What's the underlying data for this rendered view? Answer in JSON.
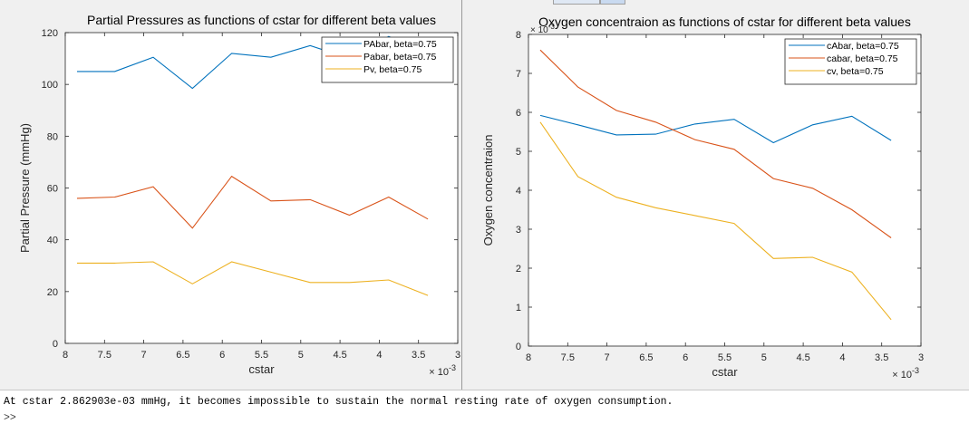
{
  "console": {
    "message": "At cstar 2.862903e-03 mmHg, it becomes impossible to sustain the normal resting rate of oxygen consumption.",
    "prompt": ">>"
  },
  "chart_data": [
    {
      "type": "line",
      "title": "Partial Pressures as functions of cstar for different beta values",
      "xlabel": "cstar",
      "ylabel": "Partial Pressure (mmHg)",
      "x_exponent_label": "× 10",
      "x_exponent": "-3",
      "x_reversed": true,
      "xlim": [
        3,
        8
      ],
      "ylim": [
        0,
        120
      ],
      "xticks": [
        8,
        7.5,
        7,
        6.5,
        6,
        5.5,
        5,
        4.5,
        4,
        3.5,
        3
      ],
      "xtick_labels": [
        "8",
        "7.5",
        "7",
        "6.5",
        "6",
        "5.5",
        "5",
        "4.5",
        "4",
        "3.5",
        "3"
      ],
      "yticks": [
        0,
        20,
        40,
        60,
        80,
        100,
        120
      ],
      "ytick_labels": [
        "0",
        "20",
        "40",
        "60",
        "80",
        "100",
        "120"
      ],
      "legend_position": "top-right",
      "x": [
        7.85,
        7.37,
        6.88,
        6.38,
        5.88,
        5.38,
        4.88,
        4.38,
        3.88,
        3.38
      ],
      "series": [
        {
          "name": "PAbar, beta=0.75",
          "color": "#0072bd",
          "values": [
            105,
            105,
            110.5,
            98.5,
            112,
            110.5,
            115,
            110,
            118.5,
            112
          ]
        },
        {
          "name": "Pabar, beta=0.75",
          "color": "#d95319",
          "values": [
            56,
            56.5,
            60.5,
            44.5,
            64.5,
            55,
            55.5,
            49.5,
            56.5,
            48
          ]
        },
        {
          "name": "Pv, beta=0.75",
          "color": "#edb120",
          "values": [
            31,
            31,
            31.5,
            23,
            31.5,
            27.5,
            23.5,
            23.5,
            24.5,
            18.5
          ]
        }
      ]
    },
    {
      "type": "line",
      "title": "Oxygen concentraion as functions of cstar for different beta values",
      "xlabel": "cstar",
      "ylabel": "Oxygen concentraion",
      "x_exponent_label": "× 10",
      "x_exponent": "-3",
      "y_exponent_label": "× 10",
      "y_exponent": "-3",
      "x_reversed": true,
      "xlim": [
        3,
        8
      ],
      "ylim": [
        0,
        8
      ],
      "xticks": [
        8,
        7.5,
        7,
        6.5,
        6,
        5.5,
        5,
        4.5,
        4,
        3.5,
        3
      ],
      "xtick_labels": [
        "8",
        "7.5",
        "7",
        "6.5",
        "6",
        "5.5",
        "5",
        "4.5",
        "4",
        "3.5",
        "3"
      ],
      "yticks": [
        0,
        1,
        2,
        3,
        4,
        5,
        6,
        7,
        8
      ],
      "ytick_labels": [
        "0",
        "1",
        "2",
        "3",
        "4",
        "5",
        "6",
        "7",
        "8"
      ],
      "legend_position": "top-right",
      "x": [
        7.85,
        7.37,
        6.88,
        6.38,
        5.88,
        5.38,
        4.88,
        4.38,
        3.88,
        3.38
      ],
      "series": [
        {
          "name": "cAbar, beta=0.75",
          "color": "#0072bd",
          "values": [
            5.92,
            5.68,
            5.42,
            5.44,
            5.7,
            5.82,
            5.22,
            5.68,
            5.9,
            5.28
          ]
        },
        {
          "name": "cabar, beta=0.75",
          "color": "#d95319",
          "values": [
            7.6,
            6.65,
            6.05,
            5.75,
            5.3,
            5.05,
            4.3,
            4.05,
            3.5,
            2.78
          ]
        },
        {
          "name": "cv, beta=0.75",
          "color": "#edb120",
          "values": [
            5.75,
            4.35,
            3.82,
            3.55,
            3.35,
            3.15,
            2.25,
            2.28,
            1.9,
            0.68
          ]
        }
      ]
    }
  ]
}
